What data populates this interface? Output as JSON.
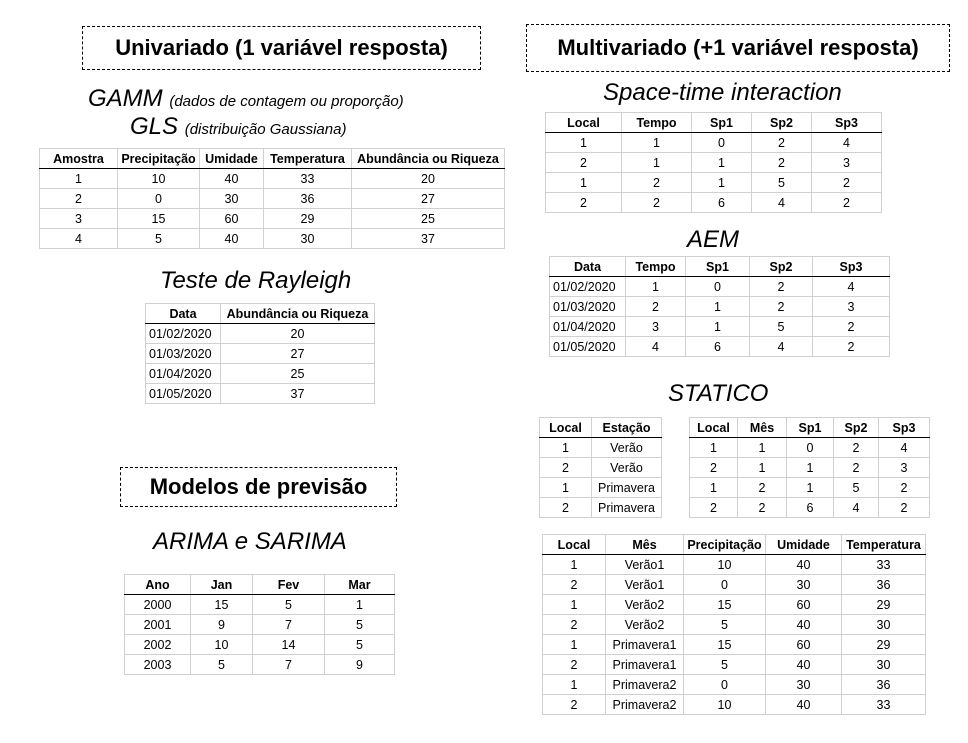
{
  "headers": {
    "univariado": "Univariado (1 variável resposta)",
    "multivariado": "Multivariado (+1 variável resposta)",
    "previsao": "Modelos de previsão"
  },
  "titles": {
    "gamm": "GAMM",
    "gamm_note": "(dados de contagem ou proporção)",
    "gls": "GLS",
    "gls_note": "(distribuição Gaussiana)",
    "rayleigh": "Teste de Rayleigh",
    "arima": "ARIMA e SARIMA",
    "spacetime": "Space-time interaction",
    "aem": "AEM",
    "statico": "STATICO"
  },
  "tables": {
    "gamm": {
      "columns": [
        "Amostra",
        "Precipitação",
        "Umidade",
        "Temperatura",
        "Abundância ou Riqueza"
      ],
      "rows": [
        [
          "1",
          "10",
          "40",
          "33",
          "20"
        ],
        [
          "2",
          "0",
          "30",
          "36",
          "27"
        ],
        [
          "3",
          "15",
          "60",
          "29",
          "25"
        ],
        [
          "4",
          "5",
          "40",
          "30",
          "37"
        ]
      ]
    },
    "rayleigh": {
      "columns": [
        "Data",
        "Abundância ou Riqueza"
      ],
      "rows": [
        [
          "01/02/2020",
          "20"
        ],
        [
          "01/03/2020",
          "27"
        ],
        [
          "01/04/2020",
          "25"
        ],
        [
          "01/05/2020",
          "37"
        ]
      ]
    },
    "arima": {
      "columns": [
        "Ano",
        "Jan",
        "Fev",
        "Mar"
      ],
      "rows": [
        [
          "2000",
          "15",
          "5",
          "1"
        ],
        [
          "2001",
          "9",
          "7",
          "5"
        ],
        [
          "2002",
          "10",
          "14",
          "5"
        ],
        [
          "2003",
          "5",
          "7",
          "9"
        ]
      ]
    },
    "spacetime": {
      "columns": [
        "Local",
        "Tempo",
        "Sp1",
        "Sp2",
        "Sp3"
      ],
      "rows": [
        [
          "1",
          "1",
          "0",
          "2",
          "4"
        ],
        [
          "2",
          "1",
          "1",
          "2",
          "3"
        ],
        [
          "1",
          "2",
          "1",
          "5",
          "2"
        ],
        [
          "2",
          "2",
          "6",
          "4",
          "2"
        ]
      ]
    },
    "aem": {
      "columns": [
        "Data",
        "Tempo",
        "Sp1",
        "Sp2",
        "Sp3"
      ],
      "rows": [
        [
          "01/02/2020",
          "1",
          "0",
          "2",
          "4"
        ],
        [
          "01/03/2020",
          "2",
          "1",
          "2",
          "3"
        ],
        [
          "01/04/2020",
          "3",
          "1",
          "5",
          "2"
        ],
        [
          "01/05/2020",
          "4",
          "6",
          "4",
          "2"
        ]
      ]
    },
    "statico_a": {
      "columns": [
        "Local",
        "Estação"
      ],
      "rows": [
        [
          "1",
          "Verão"
        ],
        [
          "2",
          "Verão"
        ],
        [
          "1",
          "Primavera"
        ],
        [
          "2",
          "Primavera"
        ]
      ]
    },
    "statico_b": {
      "columns": [
        "Local",
        "Mês",
        "Sp1",
        "Sp2",
        "Sp3"
      ],
      "rows": [
        [
          "1",
          "1",
          "0",
          "2",
          "4"
        ],
        [
          "2",
          "1",
          "1",
          "2",
          "3"
        ],
        [
          "1",
          "2",
          "1",
          "5",
          "2"
        ],
        [
          "2",
          "2",
          "6",
          "4",
          "2"
        ]
      ]
    },
    "statico_c": {
      "columns": [
        "Local",
        "Mês",
        "Precipitação",
        "Umidade",
        "Temperatura"
      ],
      "rows": [
        [
          "1",
          "Verão1",
          "10",
          "40",
          "33"
        ],
        [
          "2",
          "Verão1",
          "0",
          "30",
          "36"
        ],
        [
          "1",
          "Verão2",
          "15",
          "60",
          "29"
        ],
        [
          "2",
          "Verão2",
          "5",
          "40",
          "30"
        ],
        [
          "1",
          "Primavera1",
          "15",
          "60",
          "29"
        ],
        [
          "2",
          "Primavera1",
          "5",
          "40",
          "30"
        ],
        [
          "1",
          "Primavera2",
          "0",
          "30",
          "36"
        ],
        [
          "2",
          "Primavera2",
          "10",
          "40",
          "33"
        ]
      ]
    }
  }
}
